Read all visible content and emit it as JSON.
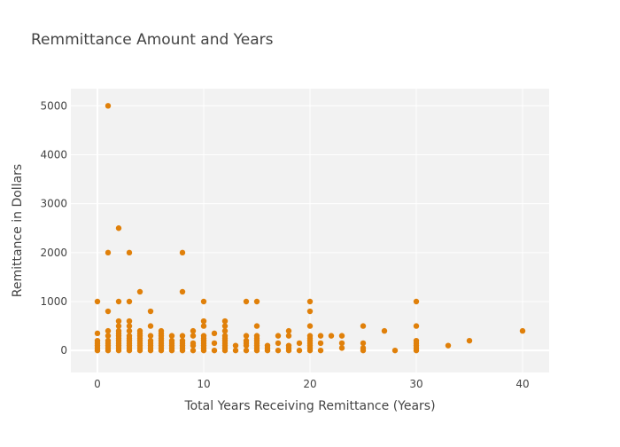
{
  "chart_data": {
    "type": "scatter",
    "title": "Remmittance Amount and Years",
    "xlabel": "Total Years Receiving Remittance (Years)",
    "ylabel": "Remittance in Dollars",
    "xlim": [
      -2.5,
      42.5
    ],
    "ylim": [
      -450,
      5350
    ],
    "x_ticks": [
      0,
      10,
      20,
      30,
      40
    ],
    "y_ticks": [
      0,
      1000,
      2000,
      3000,
      4000,
      5000
    ],
    "grid": true,
    "legend": "none",
    "colors": {
      "point": "#e0800a",
      "plot_bg": "#f2f2f2",
      "grid": "#ffffff"
    },
    "points": [
      [
        0,
        1000
      ],
      [
        0,
        350
      ],
      [
        0,
        200
      ],
      [
        0,
        150
      ],
      [
        0,
        100
      ],
      [
        0,
        50
      ],
      [
        0,
        0
      ],
      [
        1,
        5000
      ],
      [
        1,
        2000
      ],
      [
        1,
        800
      ],
      [
        1,
        400
      ],
      [
        1,
        300
      ],
      [
        1,
        200
      ],
      [
        1,
        150
      ],
      [
        1,
        100
      ],
      [
        1,
        50
      ],
      [
        1,
        0
      ],
      [
        2,
        2500
      ],
      [
        2,
        1000
      ],
      [
        2,
        600
      ],
      [
        2,
        500
      ],
      [
        2,
        400
      ],
      [
        2,
        350
      ],
      [
        2,
        300
      ],
      [
        2,
        250
      ],
      [
        2,
        200
      ],
      [
        2,
        150
      ],
      [
        2,
        100
      ],
      [
        2,
        50
      ],
      [
        2,
        0
      ],
      [
        3,
        2000
      ],
      [
        3,
        1000
      ],
      [
        3,
        600
      ],
      [
        3,
        500
      ],
      [
        3,
        400
      ],
      [
        3,
        300
      ],
      [
        3,
        250
      ],
      [
        3,
        200
      ],
      [
        3,
        150
      ],
      [
        3,
        100
      ],
      [
        3,
        50
      ],
      [
        3,
        0
      ],
      [
        4,
        1200
      ],
      [
        4,
        400
      ],
      [
        4,
        350
      ],
      [
        4,
        300
      ],
      [
        4,
        250
      ],
      [
        4,
        200
      ],
      [
        4,
        150
      ],
      [
        4,
        100
      ],
      [
        4,
        50
      ],
      [
        4,
        0
      ],
      [
        5,
        800
      ],
      [
        5,
        500
      ],
      [
        5,
        300
      ],
      [
        5,
        200
      ],
      [
        5,
        150
      ],
      [
        5,
        100
      ],
      [
        5,
        50
      ],
      [
        5,
        0
      ],
      [
        6,
        400
      ],
      [
        6,
        350
      ],
      [
        6,
        300
      ],
      [
        6,
        250
      ],
      [
        6,
        200
      ],
      [
        6,
        150
      ],
      [
        6,
        100
      ],
      [
        6,
        50
      ],
      [
        6,
        0
      ],
      [
        7,
        300
      ],
      [
        7,
        200
      ],
      [
        7,
        150
      ],
      [
        7,
        100
      ],
      [
        7,
        50
      ],
      [
        7,
        0
      ],
      [
        8,
        2000
      ],
      [
        8,
        1200
      ],
      [
        8,
        300
      ],
      [
        8,
        200
      ],
      [
        8,
        150
      ],
      [
        8,
        100
      ],
      [
        8,
        50
      ],
      [
        8,
        0
      ],
      [
        9,
        400
      ],
      [
        9,
        300
      ],
      [
        9,
        150
      ],
      [
        9,
        100
      ],
      [
        9,
        0
      ],
      [
        10,
        1000
      ],
      [
        10,
        600
      ],
      [
        10,
        500
      ],
      [
        10,
        300
      ],
      [
        10,
        250
      ],
      [
        10,
        200
      ],
      [
        10,
        150
      ],
      [
        10,
        100
      ],
      [
        10,
        50
      ],
      [
        10,
        0
      ],
      [
        11,
        350
      ],
      [
        11,
        150
      ],
      [
        11,
        0
      ],
      [
        12,
        600
      ],
      [
        12,
        500
      ],
      [
        12,
        400
      ],
      [
        12,
        300
      ],
      [
        12,
        250
      ],
      [
        12,
        200
      ],
      [
        12,
        150
      ],
      [
        12,
        100
      ],
      [
        12,
        50
      ],
      [
        12,
        0
      ],
      [
        13,
        100
      ],
      [
        13,
        0
      ],
      [
        14,
        1000
      ],
      [
        14,
        300
      ],
      [
        14,
        200
      ],
      [
        14,
        150
      ],
      [
        14,
        100
      ],
      [
        14,
        0
      ],
      [
        15,
        1000
      ],
      [
        15,
        500
      ],
      [
        15,
        300
      ],
      [
        15,
        250
      ],
      [
        15,
        200
      ],
      [
        15,
        150
      ],
      [
        15,
        100
      ],
      [
        15,
        50
      ],
      [
        15,
        0
      ],
      [
        16,
        100
      ],
      [
        16,
        50
      ],
      [
        16,
        0
      ],
      [
        17,
        300
      ],
      [
        17,
        150
      ],
      [
        17,
        0
      ],
      [
        18,
        400
      ],
      [
        18,
        300
      ],
      [
        18,
        100
      ],
      [
        18,
        50
      ],
      [
        18,
        0
      ],
      [
        19,
        150
      ],
      [
        19,
        0
      ],
      [
        20,
        1000
      ],
      [
        20,
        800
      ],
      [
        20,
        500
      ],
      [
        20,
        300
      ],
      [
        20,
        250
      ],
      [
        20,
        200
      ],
      [
        20,
        150
      ],
      [
        20,
        100
      ],
      [
        20,
        50
      ],
      [
        20,
        0
      ],
      [
        21,
        300
      ],
      [
        21,
        150
      ],
      [
        21,
        0
      ],
      [
        22,
        300
      ],
      [
        23,
        300
      ],
      [
        23,
        150
      ],
      [
        23,
        50
      ],
      [
        25,
        500
      ],
      [
        25,
        150
      ],
      [
        25,
        50
      ],
      [
        25,
        0
      ],
      [
        27,
        400
      ],
      [
        28,
        0
      ],
      [
        30,
        1000
      ],
      [
        30,
        500
      ],
      [
        30,
        200
      ],
      [
        30,
        150
      ],
      [
        30,
        100
      ],
      [
        30,
        50
      ],
      [
        30,
        0
      ],
      [
        33,
        100
      ],
      [
        35,
        200
      ],
      [
        40,
        400
      ]
    ]
  }
}
